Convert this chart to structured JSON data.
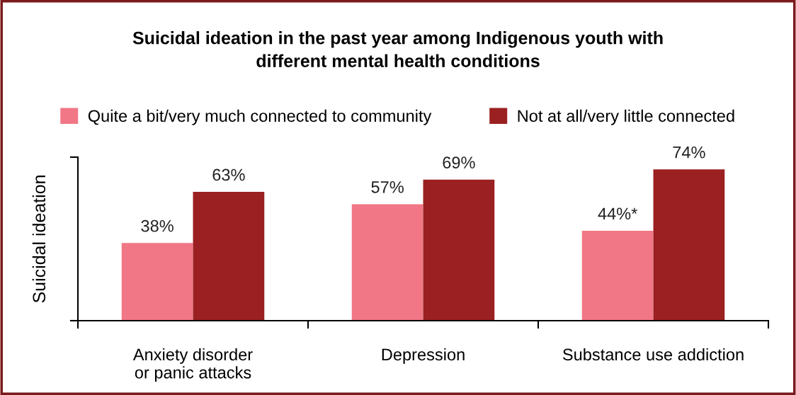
{
  "chart_data": {
    "type": "bar",
    "title": "Suicidal ideation in the past year among Indigenous youth with\ndifferent mental health conditions",
    "ylabel": "Suicidal ideation",
    "categories": [
      "Anxiety disorder\nor panic attacks",
      "Depression",
      "Substance use addiction"
    ],
    "series": [
      {
        "name": "Quite a bit/very much connected to community",
        "color": "#f27786",
        "values": [
          38,
          57,
          44
        ],
        "value_labels": [
          "38%",
          "57%",
          "44%*"
        ]
      },
      {
        "name": "Not at all/very little connected",
        "color": "#9b2021",
        "values": [
          63,
          69,
          74
        ],
        "value_labels": [
          "63%",
          "69%",
          "74%"
        ]
      }
    ],
    "ylim": [
      0,
      80
    ],
    "yticks": [
      {
        "value": 0,
        "label": null
      },
      {
        "value": 80,
        "label": null
      }
    ],
    "legend": "top",
    "grid": false
  }
}
